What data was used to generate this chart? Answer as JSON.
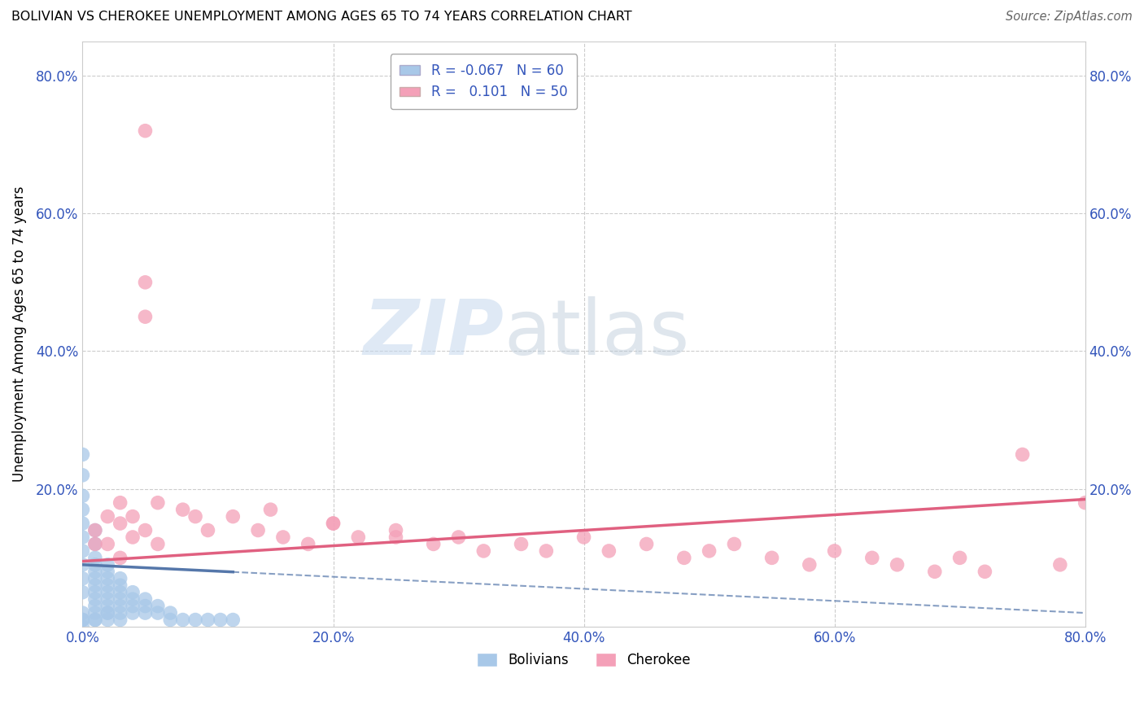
{
  "title": "BOLIVIAN VS CHEROKEE UNEMPLOYMENT AMONG AGES 65 TO 74 YEARS CORRELATION CHART",
  "source": "Source: ZipAtlas.com",
  "ylabel": "Unemployment Among Ages 65 to 74 years",
  "xlim": [
    0,
    80
  ],
  "ylim": [
    0,
    85
  ],
  "xticks": [
    0,
    20,
    40,
    60,
    80
  ],
  "yticks": [
    20,
    40,
    60,
    80
  ],
  "xticklabels": [
    "0.0%",
    "20.0%",
    "40.0%",
    "60.0%",
    "80.0%"
  ],
  "yticklabels": [
    "20.0%",
    "40.0%",
    "60.0%",
    "80.0%"
  ],
  "right_yticklabels": [
    "20.0%",
    "40.0%",
    "60.0%",
    "80.0%"
  ],
  "bolivian_color": "#a8c8e8",
  "cherokee_color": "#f4a0b8",
  "bolivian_line_color": "#5577aa",
  "cherokee_line_color": "#e06080",
  "bolivian_R": -0.067,
  "bolivian_N": 60,
  "cherokee_R": 0.101,
  "cherokee_N": 50,
  "watermark_zip": "ZIP",
  "watermark_atlas": "atlas",
  "bolivian_x": [
    0,
    0,
    0,
    0,
    0,
    0,
    0,
    0,
    0,
    0,
    1,
    1,
    1,
    1,
    1,
    1,
    1,
    1,
    1,
    1,
    2,
    2,
    2,
    2,
    2,
    2,
    2,
    2,
    3,
    3,
    3,
    3,
    3,
    3,
    4,
    4,
    4,
    4,
    5,
    5,
    5,
    6,
    6,
    7,
    7,
    8,
    9,
    10,
    11,
    12,
    0,
    0,
    1,
    1,
    2,
    2,
    3,
    0,
    0,
    1
  ],
  "bolivian_y": [
    25,
    22,
    19,
    17,
    15,
    13,
    11,
    9,
    7,
    5,
    14,
    12,
    10,
    9,
    8,
    7,
    6,
    5,
    4,
    3,
    9,
    8,
    7,
    6,
    5,
    4,
    3,
    2,
    7,
    6,
    5,
    4,
    3,
    2,
    5,
    4,
    3,
    2,
    4,
    3,
    2,
    3,
    2,
    2,
    1,
    1,
    1,
    1,
    1,
    1,
    2,
    1,
    2,
    1,
    2,
    1,
    1,
    1,
    0,
    1
  ],
  "cherokee_x": [
    5,
    5,
    5,
    1,
    1,
    2,
    2,
    3,
    3,
    3,
    4,
    4,
    5,
    6,
    6,
    8,
    9,
    10,
    12,
    14,
    16,
    18,
    20,
    22,
    25,
    28,
    30,
    32,
    35,
    37,
    40,
    42,
    45,
    48,
    50,
    52,
    55,
    58,
    60,
    63,
    65,
    68,
    70,
    72,
    75,
    78,
    80,
    15,
    20,
    25
  ],
  "cherokee_y": [
    72,
    50,
    45,
    14,
    12,
    16,
    12,
    18,
    15,
    10,
    16,
    13,
    14,
    18,
    12,
    17,
    16,
    14,
    16,
    14,
    13,
    12,
    15,
    13,
    14,
    12,
    13,
    11,
    12,
    11,
    13,
    11,
    12,
    10,
    11,
    12,
    10,
    9,
    11,
    10,
    9,
    8,
    10,
    8,
    25,
    9,
    18,
    17,
    15,
    13
  ],
  "cherokee_trend_x0": 0,
  "cherokee_trend_y0": 9.5,
  "cherokee_trend_x1": 80,
  "cherokee_trend_y1": 18.5,
  "bolivian_trend_x0": 0,
  "bolivian_trend_y0": 9.0,
  "bolivian_trend_x1": 80,
  "bolivian_trend_y1": 2.0
}
